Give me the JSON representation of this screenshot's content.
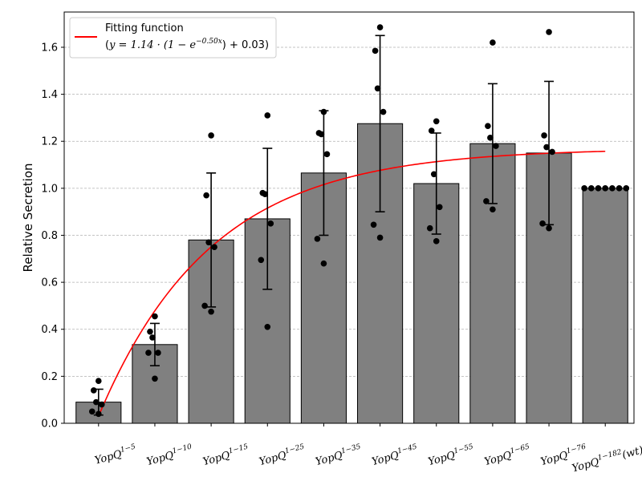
{
  "chart_data": {
    "type": "bar",
    "categories": [
      {
        "base": "YopQ",
        "sup": "1−5",
        "suffix": ""
      },
      {
        "base": "YopQ",
        "sup": "1−10",
        "suffix": ""
      },
      {
        "base": "YopQ",
        "sup": "1−15",
        "suffix": ""
      },
      {
        "base": "YopQ",
        "sup": "1−25",
        "suffix": ""
      },
      {
        "base": "YopQ",
        "sup": "1−35",
        "suffix": ""
      },
      {
        "base": "YopQ",
        "sup": "1−45",
        "suffix": ""
      },
      {
        "base": "YopQ",
        "sup": "1−55",
        "suffix": ""
      },
      {
        "base": "YopQ",
        "sup": "1−65",
        "suffix": ""
      },
      {
        "base": "YopQ",
        "sup": "1−76",
        "suffix": ""
      },
      {
        "base": "YopQ",
        "sup": "1−182",
        "suffix": "(wt)"
      }
    ],
    "values": [
      0.09,
      0.335,
      0.78,
      0.87,
      1.065,
      1.275,
      1.02,
      1.19,
      1.15,
      1.0
    ],
    "errors": [
      0.055,
      0.09,
      0.285,
      0.3,
      0.265,
      0.375,
      0.215,
      0.255,
      0.305,
      0.0
    ],
    "points": [
      [
        0.18,
        0.14,
        0.09,
        0.08,
        0.05,
        0.04
      ],
      [
        0.455,
        0.39,
        0.365,
        0.3,
        0.3,
        0.19
      ],
      [
        1.225,
        0.97,
        0.77,
        0.75,
        0.5,
        0.475
      ],
      [
        1.31,
        0.98,
        0.975,
        0.85,
        0.695,
        0.41
      ],
      [
        1.325,
        1.235,
        1.23,
        1.145,
        0.785,
        0.68
      ],
      [
        1.685,
        1.585,
        1.425,
        1.325,
        0.845,
        0.79
      ],
      [
        1.285,
        1.245,
        1.06,
        0.92,
        0.83,
        0.775
      ],
      [
        1.62,
        1.265,
        1.215,
        1.18,
        0.945,
        0.91
      ],
      [
        1.665,
        1.225,
        1.175,
        1.155,
        0.85,
        0.83
      ],
      [
        1.0,
        1.0,
        1.0,
        1.0,
        1.0,
        1.0,
        1.0
      ]
    ],
    "fit": {
      "A": 1.14,
      "k": 0.5,
      "c": 0.03
    },
    "ylabel": "Relative Secretion",
    "xlabel": "",
    "ylim": [
      0,
      1.75
    ],
    "yticks": [
      "0.0",
      "0.2",
      "0.4",
      "0.6",
      "0.8",
      "1.0",
      "1.2",
      "1.4",
      "1.6"
    ],
    "grid": "y-dashed",
    "legend": {
      "position": "top-left",
      "line1": "Fitting function",
      "line2_prefix": "(",
      "line2_math": "y = 1.14 · (1 − e",
      "line2_exp": "−0.50x",
      "line2_suffix": ") + 0.03)"
    },
    "colors": {
      "bar": "#808080",
      "fit": "#ff0000",
      "points": "#000000",
      "errorbar": "#000000"
    }
  }
}
